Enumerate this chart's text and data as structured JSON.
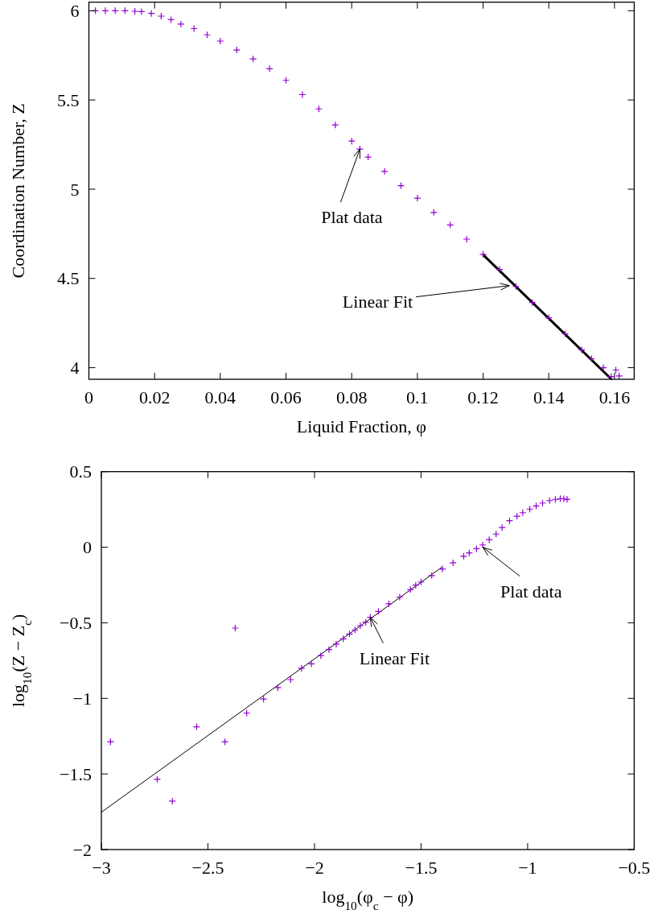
{
  "chart_data": [
    {
      "type": "scatter",
      "xlabel": "Liquid Fraction, φ",
      "ylabel": "Coordination Number, Z",
      "xlim": [
        0,
        0.166
      ],
      "ylim": [
        3.935,
        6.048
      ],
      "xticks": [
        0,
        0.02,
        0.04,
        0.06,
        0.08,
        0.1,
        0.12,
        0.14,
        0.16
      ],
      "yticks": [
        4,
        4.5,
        5,
        5.5,
        6
      ],
      "grid": false,
      "series": [
        {
          "type": "scatter",
          "color": "#9400d3",
          "marker": "cross",
          "x": [
            0.002,
            0.005,
            0.008,
            0.011,
            0.014,
            0.016,
            0.019,
            0.022,
            0.025,
            0.028,
            0.032,
            0.036,
            0.04,
            0.045,
            0.05,
            0.055,
            0.06,
            0.065,
            0.07,
            0.075,
            0.08,
            0.0825,
            0.085,
            0.09,
            0.095,
            0.1,
            0.105,
            0.11,
            0.115,
            0.12,
            0.125,
            0.13,
            0.135,
            0.14,
            0.145,
            0.15,
            0.153,
            0.1566,
            0.159,
            0.1604,
            0.1614
          ],
          "values": [
            6.0,
            6.0,
            6.0,
            6.0,
            5.997,
            5.995,
            5.985,
            5.97,
            5.95,
            5.925,
            5.9,
            5.865,
            5.83,
            5.78,
            5.73,
            5.675,
            5.61,
            5.53,
            5.45,
            5.36,
            5.27,
            5.225,
            5.18,
            5.1,
            5.02,
            4.95,
            4.87,
            4.8,
            4.72,
            4.635,
            4.55,
            4.455,
            4.365,
            4.28,
            4.19,
            4.1,
            4.05,
            4.0,
            3.95,
            3.987,
            3.954
          ]
        },
        {
          "type": "line",
          "color": "#000000",
          "marker": "none",
          "line_style": "solid",
          "x": [
            0.12,
            0.1591
          ],
          "values": [
            4.633,
            3.935
          ]
        }
      ],
      "annotations": [
        {
          "text": "Plat data",
          "x": 0.0825,
          "y": 5.225
        },
        {
          "text": "Linear Fit",
          "x": 0.128,
          "y": 4.46
        }
      ]
    },
    {
      "type": "scatter",
      "xlabel": "log$_{10}$(φ$_{c}$ − φ)",
      "ylabel": "log$_{10}$(Z − Z$_{c}$)",
      "xlim": [
        -3,
        -0.5
      ],
      "ylim": [
        -2,
        0.5
      ],
      "xticks": [
        -3,
        -2.5,
        -2,
        -1.5,
        -1,
        -0.5
      ],
      "yticks": [
        -2,
        -1.5,
        -1,
        -0.5,
        0,
        0.5
      ],
      "grid": false,
      "series": [
        {
          "type": "scatter",
          "color": "#9400d3",
          "marker": "cross",
          "x": [
            -2.957,
            -2.738,
            -2.667,
            -2.553,
            -2.42,
            -2.372,
            -2.318,
            -2.239,
            -2.172,
            -2.112,
            -2.061,
            -2.014,
            -1.97,
            -1.932,
            -1.898,
            -1.865,
            -1.836,
            -1.81,
            -1.785,
            -1.76,
            -1.738,
            -1.7,
            -1.651,
            -1.6,
            -1.55,
            -1.525,
            -1.5,
            -1.45,
            -1.4,
            -1.35,
            -1.3,
            -1.274,
            -1.24,
            -1.211,
            -1.18,
            -1.148,
            -1.12,
            -1.085,
            -1.05,
            -1.023,
            -0.99,
            -0.96,
            -0.93,
            -0.897,
            -0.87,
            -0.847,
            -0.83,
            -0.815
          ],
          "values": [
            -1.287,
            -1.535,
            -1.68,
            -1.188,
            -1.287,
            -0.535,
            -1.097,
            -1.005,
            -0.929,
            -0.876,
            -0.801,
            -0.771,
            -0.717,
            -0.677,
            -0.641,
            -0.606,
            -0.574,
            -0.547,
            -0.519,
            -0.496,
            -0.464,
            -0.425,
            -0.375,
            -0.33,
            -0.28,
            -0.251,
            -0.23,
            -0.188,
            -0.144,
            -0.103,
            -0.06,
            -0.038,
            -0.01,
            0.015,
            0.05,
            0.087,
            0.13,
            0.175,
            0.205,
            0.228,
            0.252,
            0.273,
            0.292,
            0.308,
            0.316,
            0.321,
            0.32,
            0.317
          ]
        },
        {
          "type": "line",
          "color": "#000000",
          "marker": "none",
          "line_style": "solid",
          "x": [
            -3,
            -1.4
          ],
          "values": [
            -1.753,
            -0.13
          ]
        }
      ],
      "annotations": [
        {
          "text": "Plat data",
          "x": -1.21,
          "y": 0.0
        },
        {
          "text": "Linear Fit",
          "x": -1.738,
          "y": -0.464
        }
      ]
    }
  ]
}
